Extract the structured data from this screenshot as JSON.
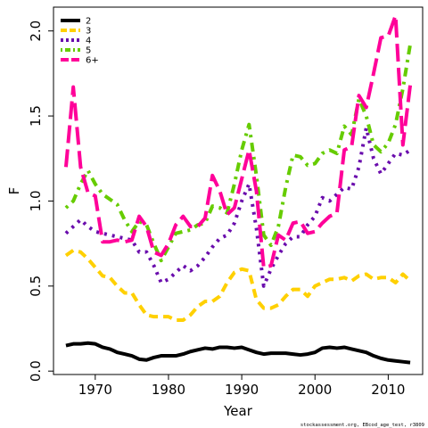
{
  "chart_data": {
    "type": "line",
    "xlabel": "Year",
    "ylabel": "F",
    "xlim": [
      1964.3,
      2014.7
    ],
    "ylim": [
      -0.02,
      2.14
    ],
    "x_ticks": [
      1970,
      1980,
      1990,
      2000,
      2010
    ],
    "y_ticks": [
      0.0,
      0.5,
      1.0,
      1.5,
      2.0
    ],
    "y_tick_labels": [
      "0.0",
      "0.5",
      "1.0",
      "1.5",
      "2.0"
    ],
    "grid": false,
    "legend_position": "top-left",
    "credit": "stockassessment.org, EBcod_age_test, r3809",
    "x": [
      1966,
      1967,
      1968,
      1969,
      1970,
      1971,
      1972,
      1973,
      1974,
      1975,
      1976,
      1977,
      1978,
      1979,
      1980,
      1981,
      1982,
      1983,
      1984,
      1985,
      1986,
      1987,
      1988,
      1989,
      1990,
      1991,
      1992,
      1993,
      1994,
      1995,
      1996,
      1997,
      1998,
      1999,
      2000,
      2001,
      2002,
      2003,
      2004,
      2005,
      2006,
      2007,
      2008,
      2009,
      2010,
      2011,
      2012,
      2013
    ],
    "series": [
      {
        "name": "2",
        "color": "#000000",
        "dash": "solid",
        "values": [
          0.15,
          0.16,
          0.16,
          0.165,
          0.16,
          0.14,
          0.13,
          0.11,
          0.1,
          0.09,
          0.07,
          0.065,
          0.08,
          0.09,
          0.09,
          0.09,
          0.1,
          0.115,
          0.125,
          0.135,
          0.13,
          0.14,
          0.14,
          0.135,
          0.14,
          0.125,
          0.11,
          0.1,
          0.105,
          0.105,
          0.105,
          0.1,
          0.095,
          0.1,
          0.11,
          0.135,
          0.14,
          0.135,
          0.14,
          0.13,
          0.12,
          0.11,
          0.09,
          0.075,
          0.065,
          0.06,
          0.055,
          0.05
        ]
      },
      {
        "name": "3",
        "color": "#ffd000",
        "dash": "dashed",
        "values": [
          0.68,
          0.71,
          0.7,
          0.66,
          0.61,
          0.56,
          0.55,
          0.5,
          0.46,
          0.46,
          0.39,
          0.33,
          0.32,
          0.32,
          0.32,
          0.3,
          0.3,
          0.33,
          0.38,
          0.41,
          0.41,
          0.44,
          0.52,
          0.58,
          0.6,
          0.59,
          0.42,
          0.37,
          0.37,
          0.39,
          0.44,
          0.48,
          0.48,
          0.44,
          0.5,
          0.52,
          0.54,
          0.54,
          0.55,
          0.53,
          0.56,
          0.57,
          0.54,
          0.55,
          0.55,
          0.52,
          0.57,
          0.53
        ]
      },
      {
        "name": "4",
        "color": "#6a0dad",
        "dash": "dotted",
        "values": [
          0.81,
          0.85,
          0.89,
          0.85,
          0.82,
          0.81,
          0.8,
          0.79,
          0.78,
          0.77,
          0.7,
          0.7,
          0.62,
          0.52,
          0.54,
          0.58,
          0.62,
          0.59,
          0.62,
          0.67,
          0.73,
          0.78,
          0.8,
          0.87,
          1.0,
          1.1,
          0.84,
          0.5,
          0.6,
          0.68,
          0.75,
          0.79,
          0.79,
          0.86,
          0.91,
          1.02,
          1.0,
          1.04,
          1.08,
          1.07,
          1.2,
          1.43,
          1.25,
          1.16,
          1.22,
          1.28,
          1.27,
          1.3
        ]
      },
      {
        "name": "5",
        "color": "#66cc00",
        "dash": "dashdot",
        "values": [
          0.96,
          1.0,
          1.1,
          1.18,
          1.1,
          1.04,
          1.01,
          0.98,
          0.89,
          0.82,
          0.88,
          0.86,
          0.75,
          0.65,
          0.73,
          0.81,
          0.82,
          0.83,
          0.86,
          0.87,
          0.97,
          0.96,
          0.93,
          1.1,
          1.3,
          1.45,
          1.15,
          0.8,
          0.74,
          0.85,
          1.08,
          1.27,
          1.26,
          1.21,
          1.22,
          1.28,
          1.3,
          1.28,
          1.44,
          1.39,
          1.6,
          1.5,
          1.33,
          1.29,
          1.34,
          1.45,
          1.66,
          1.92
        ]
      },
      {
        "name": "6+",
        "color": "#ff0099",
        "dash": "longdash",
        "values": [
          1.2,
          1.67,
          1.2,
          1.05,
          1.03,
          0.76,
          0.76,
          0.77,
          0.76,
          0.77,
          0.91,
          0.85,
          0.7,
          0.68,
          0.75,
          0.86,
          0.91,
          0.85,
          0.85,
          0.9,
          1.15,
          1.06,
          0.92,
          0.96,
          1.13,
          1.3,
          1.06,
          0.61,
          0.62,
          0.8,
          0.77,
          0.87,
          0.88,
          0.81,
          0.82,
          0.87,
          0.91,
          0.93,
          1.3,
          1.32,
          1.62,
          1.55,
          1.75,
          1.96,
          1.97,
          2.09,
          1.33,
          1.68
        ]
      }
    ]
  }
}
